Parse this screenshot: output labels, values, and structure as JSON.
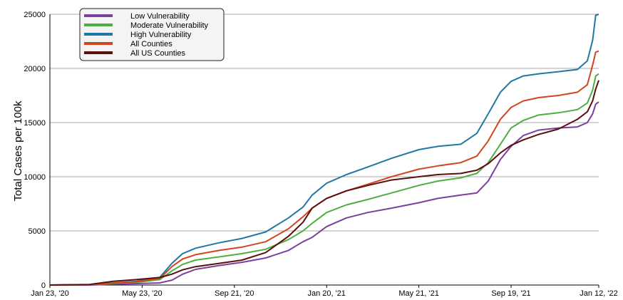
{
  "chart_data": {
    "type": "line",
    "title": "",
    "xlabel": "",
    "ylabel": "Total Cases per 100k",
    "ylim": [
      0,
      25000
    ],
    "xlim": [
      "2020-01-23",
      "2022-01-12"
    ],
    "yticks": [
      0,
      5000,
      10000,
      15000,
      20000,
      25000
    ],
    "xticks": [
      {
        "date": "2020-01-23",
        "label": "Jan 23, '20"
      },
      {
        "date": "2020-05-23",
        "label": "May 23, '20"
      },
      {
        "date": "2020-09-21",
        "label": "Sep 21, '20"
      },
      {
        "date": "2021-01-20",
        "label": "Jan 20, '21"
      },
      {
        "date": "2021-05-21",
        "label": "May 21, '21"
      },
      {
        "date": "2021-09-19",
        "label": "Sep 19, '21"
      },
      {
        "date": "2022-01-12",
        "label": "Jan 12, '22"
      }
    ],
    "grid": "horizontal",
    "legend_position": "top-left",
    "series": [
      {
        "name": "Low Vulnerability",
        "color": "#7b3fa0",
        "points": [
          [
            "2020-01-23",
            0
          ],
          [
            "2020-03-15",
            0
          ],
          [
            "2020-04-15",
            80
          ],
          [
            "2020-05-15",
            130
          ],
          [
            "2020-06-15",
            200
          ],
          [
            "2020-07-01",
            450
          ],
          [
            "2020-07-15",
            1000
          ],
          [
            "2020-08-01",
            1450
          ],
          [
            "2020-09-01",
            1800
          ],
          [
            "2020-10-01",
            2100
          ],
          [
            "2020-11-01",
            2500
          ],
          [
            "2020-12-01",
            3200
          ],
          [
            "2020-12-20",
            4000
          ],
          [
            "2021-01-01",
            4400
          ],
          [
            "2021-01-20",
            5400
          ],
          [
            "2021-02-15",
            6200
          ],
          [
            "2021-03-15",
            6700
          ],
          [
            "2021-04-15",
            7100
          ],
          [
            "2021-05-21",
            7600
          ],
          [
            "2021-06-15",
            8000
          ],
          [
            "2021-07-15",
            8300
          ],
          [
            "2021-08-05",
            8500
          ],
          [
            "2021-08-20",
            9600
          ],
          [
            "2021-09-05",
            11600
          ],
          [
            "2021-09-19",
            12800
          ],
          [
            "2021-10-05",
            13800
          ],
          [
            "2021-10-25",
            14300
          ],
          [
            "2021-11-20",
            14500
          ],
          [
            "2021-12-15",
            14600
          ],
          [
            "2021-12-28",
            15000
          ],
          [
            "2022-01-04",
            15800
          ],
          [
            "2022-01-08",
            16700
          ],
          [
            "2022-01-12",
            16900
          ]
        ]
      },
      {
        "name": "Moderate Vulnerability",
        "color": "#4caf3f",
        "points": [
          [
            "2020-01-23",
            0
          ],
          [
            "2020-03-15",
            30
          ],
          [
            "2020-04-15",
            150
          ],
          [
            "2020-05-15",
            250
          ],
          [
            "2020-06-15",
            500
          ],
          [
            "2020-07-01",
            1300
          ],
          [
            "2020-07-15",
            1900
          ],
          [
            "2020-08-01",
            2300
          ],
          [
            "2020-09-01",
            2600
          ],
          [
            "2020-10-01",
            2900
          ],
          [
            "2020-11-01",
            3300
          ],
          [
            "2020-12-01",
            4200
          ],
          [
            "2020-12-20",
            5000
          ],
          [
            "2021-01-01",
            5700
          ],
          [
            "2021-01-20",
            6700
          ],
          [
            "2021-02-15",
            7400
          ],
          [
            "2021-03-15",
            7900
          ],
          [
            "2021-04-15",
            8500
          ],
          [
            "2021-05-21",
            9200
          ],
          [
            "2021-06-15",
            9600
          ],
          [
            "2021-07-15",
            9900
          ],
          [
            "2021-08-05",
            10300
          ],
          [
            "2021-08-20",
            11300
          ],
          [
            "2021-09-05",
            13000
          ],
          [
            "2021-09-19",
            14500
          ],
          [
            "2021-10-05",
            15200
          ],
          [
            "2021-10-25",
            15700
          ],
          [
            "2021-11-20",
            15900
          ],
          [
            "2021-12-15",
            16200
          ],
          [
            "2021-12-28",
            16800
          ],
          [
            "2022-01-04",
            18000
          ],
          [
            "2022-01-08",
            19300
          ],
          [
            "2022-01-12",
            19500
          ]
        ]
      },
      {
        "name": "High Vulnerability",
        "color": "#1f77a4",
        "points": [
          [
            "2020-01-23",
            0
          ],
          [
            "2020-03-15",
            40
          ],
          [
            "2020-04-15",
            200
          ],
          [
            "2020-05-15",
            350
          ],
          [
            "2020-06-15",
            700
          ],
          [
            "2020-07-01",
            2000
          ],
          [
            "2020-07-15",
            2900
          ],
          [
            "2020-08-01",
            3400
          ],
          [
            "2020-09-01",
            3900
          ],
          [
            "2020-10-01",
            4300
          ],
          [
            "2020-11-01",
            4900
          ],
          [
            "2020-12-01",
            6200
          ],
          [
            "2020-12-20",
            7200
          ],
          [
            "2021-01-01",
            8300
          ],
          [
            "2021-01-20",
            9400
          ],
          [
            "2021-02-15",
            10200
          ],
          [
            "2021-03-15",
            10900
          ],
          [
            "2021-04-15",
            11700
          ],
          [
            "2021-05-21",
            12500
          ],
          [
            "2021-06-15",
            12800
          ],
          [
            "2021-07-15",
            13000
          ],
          [
            "2021-08-05",
            14000
          ],
          [
            "2021-08-20",
            15800
          ],
          [
            "2021-09-05",
            17800
          ],
          [
            "2021-09-19",
            18800
          ],
          [
            "2021-10-05",
            19300
          ],
          [
            "2021-10-25",
            19500
          ],
          [
            "2021-11-20",
            19700
          ],
          [
            "2021-12-15",
            19900
          ],
          [
            "2021-12-28",
            20700
          ],
          [
            "2022-01-04",
            22600
          ],
          [
            "2022-01-08",
            24900
          ],
          [
            "2022-01-12",
            25000
          ]
        ]
      },
      {
        "name": "All Counties",
        "color": "#d1461e",
        "points": [
          [
            "2020-01-23",
            0
          ],
          [
            "2020-03-15",
            30
          ],
          [
            "2020-04-15",
            170
          ],
          [
            "2020-05-15",
            300
          ],
          [
            "2020-06-15",
            600
          ],
          [
            "2020-07-01",
            1700
          ],
          [
            "2020-07-15",
            2400
          ],
          [
            "2020-08-01",
            2800
          ],
          [
            "2020-09-01",
            3200
          ],
          [
            "2020-10-01",
            3500
          ],
          [
            "2020-11-01",
            4000
          ],
          [
            "2020-12-01",
            5200
          ],
          [
            "2020-12-20",
            6300
          ],
          [
            "2021-01-01",
            7100
          ],
          [
            "2021-01-20",
            8000
          ],
          [
            "2021-02-15",
            8700
          ],
          [
            "2021-03-15",
            9300
          ],
          [
            "2021-04-15",
            10000
          ],
          [
            "2021-05-21",
            10700
          ],
          [
            "2021-06-15",
            11000
          ],
          [
            "2021-07-15",
            11300
          ],
          [
            "2021-08-05",
            11900
          ],
          [
            "2021-08-20",
            13300
          ],
          [
            "2021-09-05",
            15300
          ],
          [
            "2021-09-19",
            16400
          ],
          [
            "2021-10-05",
            17000
          ],
          [
            "2021-10-25",
            17300
          ],
          [
            "2021-11-20",
            17500
          ],
          [
            "2021-12-15",
            17800
          ],
          [
            "2021-12-28",
            18500
          ],
          [
            "2022-01-04",
            20300
          ],
          [
            "2022-01-08",
            21500
          ],
          [
            "2022-01-12",
            21600
          ]
        ]
      },
      {
        "name": "All US Counties",
        "color": "#5c0f0f",
        "points": [
          [
            "2020-01-23",
            0
          ],
          [
            "2020-03-15",
            50
          ],
          [
            "2020-04-15",
            350
          ],
          [
            "2020-05-15",
            500
          ],
          [
            "2020-06-15",
            700
          ],
          [
            "2020-07-01",
            1000
          ],
          [
            "2020-07-15",
            1400
          ],
          [
            "2020-08-01",
            1700
          ],
          [
            "2020-09-01",
            2000
          ],
          [
            "2020-10-01",
            2300
          ],
          [
            "2020-11-01",
            3000
          ],
          [
            "2020-12-01",
            4500
          ],
          [
            "2020-12-20",
            5800
          ],
          [
            "2021-01-01",
            7100
          ],
          [
            "2021-01-20",
            8000
          ],
          [
            "2021-02-15",
            8700
          ],
          [
            "2021-03-15",
            9200
          ],
          [
            "2021-04-15",
            9700
          ],
          [
            "2021-05-21",
            10000
          ],
          [
            "2021-06-15",
            10200
          ],
          [
            "2021-07-15",
            10300
          ],
          [
            "2021-08-05",
            10600
          ],
          [
            "2021-08-20",
            11200
          ],
          [
            "2021-09-05",
            12200
          ],
          [
            "2021-09-19",
            12900
          ],
          [
            "2021-10-05",
            13400
          ],
          [
            "2021-10-25",
            13900
          ],
          [
            "2021-11-20",
            14400
          ],
          [
            "2021-12-15",
            15300
          ],
          [
            "2021-12-28",
            16000
          ],
          [
            "2022-01-04",
            17000
          ],
          [
            "2022-01-08",
            18100
          ],
          [
            "2022-01-12",
            18900
          ]
        ]
      }
    ]
  }
}
